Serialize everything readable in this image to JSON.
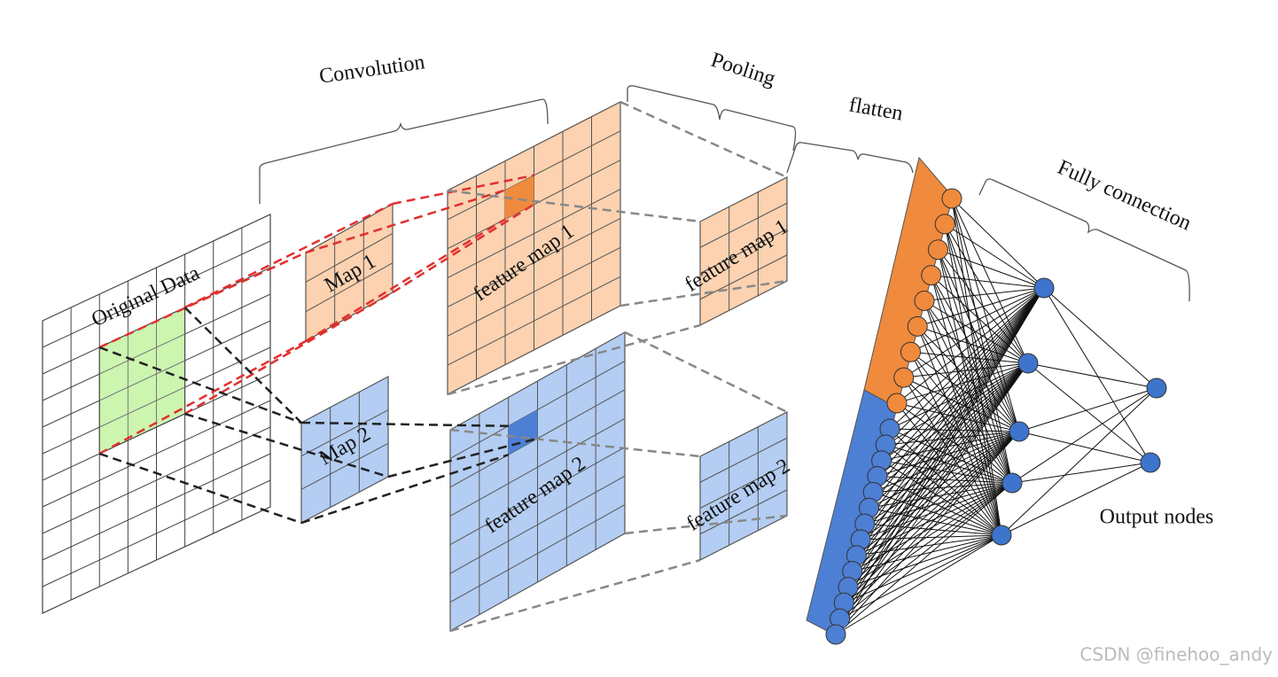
{
  "stages": [
    "Convolution",
    "Pooling",
    "flatten",
    "Fully connection"
  ],
  "layers": {
    "input": "Original Data",
    "kernel_1": "Map 1",
    "kernel_2": "Map 2",
    "feature_1": "feature map 1",
    "feature_2": "feature map 2",
    "pooled_1": "feature map 1",
    "pooled_2": "feature map 2"
  },
  "output_label": "Output nodes",
  "watermark": "CSDN @finehoo_andy"
}
